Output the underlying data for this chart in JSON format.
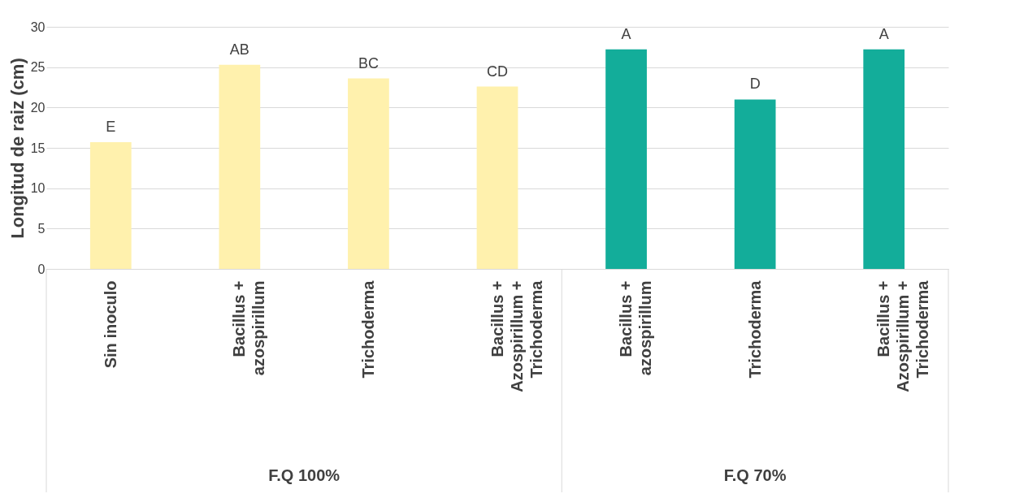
{
  "chart_data": {
    "type": "bar",
    "ylabel": "Longitud de raiz (cm)",
    "categories": [
      "Sin inoculo",
      "Bacillus + azospirillum",
      "Trichoderma",
      "Bacillus + Azospirillum + Trichoderma",
      "Bacillus + azospirillum",
      "Trichoderma",
      "Bacillus + Azospirillum + Trichoderma"
    ],
    "series": [
      {
        "color": "#fff1ad",
        "values": [
          15.7,
          25.3,
          23.6,
          22.6,
          null,
          null,
          null
        ],
        "value_labels": [
          "E",
          "AB",
          "BC",
          "CD",
          null,
          null,
          null
        ]
      },
      {
        "color": "#13ad9a",
        "values": [
          null,
          null,
          null,
          null,
          27.2,
          21.0,
          27.2
        ],
        "value_labels": [
          null,
          null,
          null,
          null,
          "A",
          "D",
          "A"
        ]
      }
    ],
    "annotations": [
      "F.Q 100%",
      "F.Q 70%"
    ],
    "ylim": [
      0,
      30
    ],
    "yticks": [
      0,
      5,
      10,
      15,
      20,
      25,
      30
    ],
    "grid": "y"
  }
}
